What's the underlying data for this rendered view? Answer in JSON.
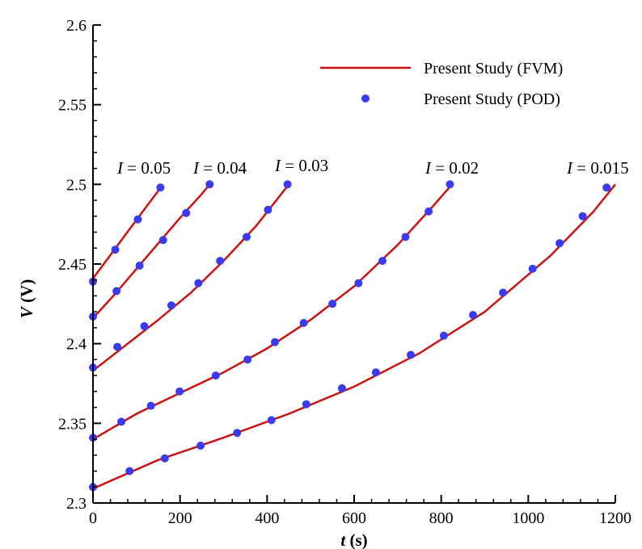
{
  "chart_data": {
    "type": "line",
    "title": "",
    "xlabel": "t (s)",
    "xlabel_var": "t",
    "xlabel_unit": " (s)",
    "ylabel": "V (V)",
    "ylabel_var": "V",
    "ylabel_unit": " (V)",
    "xlim": [
      0,
      1200
    ],
    "ylim": [
      2.3,
      2.6
    ],
    "xticks": [
      0,
      200,
      400,
      600,
      800,
      1000,
      1200
    ],
    "xtick_labels": [
      "0",
      "200",
      "400",
      "600",
      "800",
      "1000",
      "1200"
    ],
    "yticks": [
      2.3,
      2.35,
      2.4,
      2.45,
      2.5,
      2.55,
      2.6
    ],
    "ytick_labels": [
      "2.3",
      "2.35",
      "2.4",
      "2.45",
      "2.5",
      "2.55",
      "2.6"
    ],
    "grid": false,
    "legend": {
      "placement": "top-right",
      "entries": [
        {
          "label": "Present Study (FVM)",
          "style": "line",
          "color": "#cc1111"
        },
        {
          "label": "Present Study (POD)",
          "style": "marker",
          "color": "#3a3af0"
        }
      ]
    },
    "fvm_color": "#cc1111",
    "pod_color": "#3a3af0",
    "curves": [
      {
        "label_var": "I",
        "label_value": " = 0.05",
        "fvm": {
          "x": [
            0,
            30,
            60,
            90,
            120,
            150,
            160
          ],
          "y": [
            2.441,
            2.452,
            2.463,
            2.474,
            2.485,
            2.496,
            2.5
          ]
        },
        "pod": {
          "x": [
            0,
            51,
            103,
            155
          ],
          "y": [
            2.439,
            2.459,
            2.478,
            2.498
          ]
        }
      },
      {
        "label_var": "I",
        "label_value": " = 0.04",
        "fvm": {
          "x": [
            0,
            50,
            100,
            150,
            200,
            250,
            268
          ],
          "y": [
            2.416,
            2.431,
            2.447,
            2.463,
            2.479,
            2.494,
            2.5
          ]
        },
        "pod": {
          "x": [
            0,
            54,
            107,
            161,
            214,
            268
          ],
          "y": [
            2.417,
            2.433,
            2.449,
            2.465,
            2.482,
            2.5
          ]
        }
      },
      {
        "label_var": "I",
        "label_value": " = 0.03",
        "fvm": {
          "x": [
            0,
            75,
            150,
            225,
            300,
            375,
            450
          ],
          "y": [
            2.383,
            2.399,
            2.415,
            2.432,
            2.452,
            2.474,
            2.5
          ]
        },
        "pod": {
          "x": [
            0,
            56,
            118,
            180,
            242,
            292,
            353,
            402,
            447
          ],
          "y": [
            2.385,
            2.398,
            2.411,
            2.424,
            2.438,
            2.452,
            2.467,
            2.484,
            2.5
          ]
        }
      },
      {
        "label_var": "I",
        "label_value": " = 0.02",
        "fvm": {
          "x": [
            0,
            100,
            200,
            300,
            400,
            500,
            600,
            700,
            780,
            825
          ],
          "y": [
            2.34,
            2.356,
            2.369,
            2.382,
            2.397,
            2.415,
            2.436,
            2.462,
            2.486,
            2.5
          ]
        },
        "pod": {
          "x": [
            0,
            65,
            133,
            199,
            282,
            355,
            418,
            484,
            550,
            610,
            665,
            718,
            771,
            820
          ],
          "y": [
            2.341,
            2.351,
            2.361,
            2.37,
            2.38,
            2.39,
            2.401,
            2.413,
            2.425,
            2.438,
            2.452,
            2.467,
            2.483,
            2.5
          ]
        }
      },
      {
        "label_var": "I",
        "label_value": " = 0.015",
        "fvm": {
          "x": [
            0,
            150,
            300,
            450,
            600,
            750,
            900,
            1050,
            1150,
            1200
          ],
          "y": [
            2.309,
            2.327,
            2.341,
            2.356,
            2.373,
            2.394,
            2.42,
            2.455,
            2.483,
            2.5
          ]
        },
        "pod": {
          "x": [
            0,
            84,
            165,
            247,
            331,
            410,
            490,
            572,
            650,
            730,
            806,
            873,
            942,
            1010,
            1072,
            1125,
            1180
          ],
          "y": [
            2.31,
            2.32,
            2.328,
            2.336,
            2.344,
            2.352,
            2.362,
            2.372,
            2.382,
            2.393,
            2.405,
            2.418,
            2.432,
            2.447,
            2.463,
            2.48,
            2.498
          ]
        }
      }
    ]
  }
}
